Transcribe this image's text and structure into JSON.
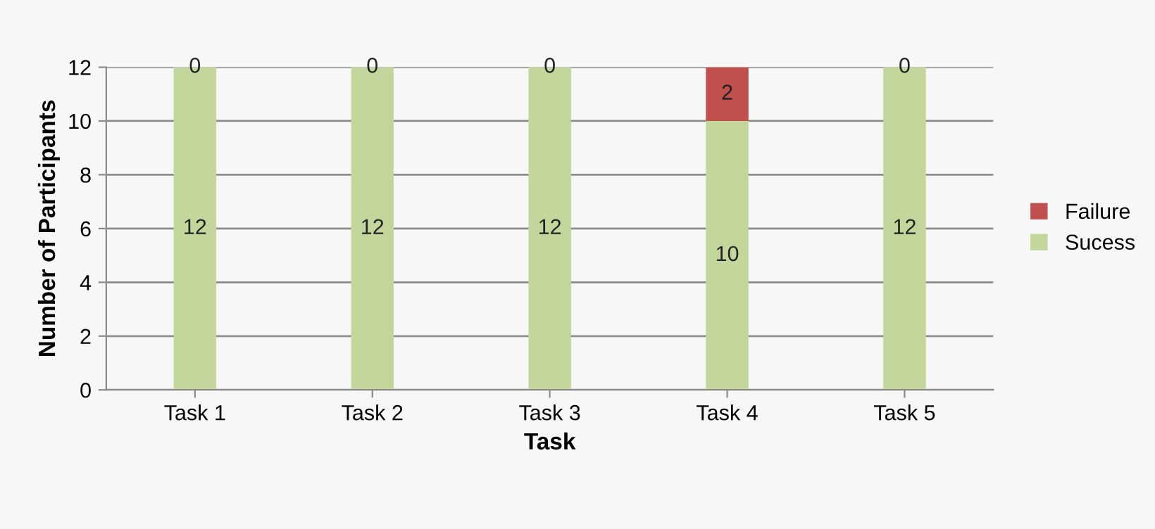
{
  "chart_data": {
    "type": "bar",
    "stacked": true,
    "xlabel": "Task",
    "ylabel": "Number of Participants",
    "categories": [
      "Task 1",
      "Task 2",
      "Task 3",
      "Task 4",
      "Task 5"
    ],
    "series": [
      {
        "name": "Sucess",
        "color": "#c3d69b",
        "values": [
          12,
          12,
          12,
          10,
          12
        ]
      },
      {
        "name": "Failure",
        "color": "#c0504d",
        "values": [
          0,
          0,
          0,
          2,
          0
        ]
      }
    ],
    "ylim": [
      0,
      12
    ],
    "yticks": [
      0,
      2,
      4,
      6,
      8,
      10,
      12
    ],
    "grid": "y",
    "legend": "right",
    "data_labels": true
  }
}
